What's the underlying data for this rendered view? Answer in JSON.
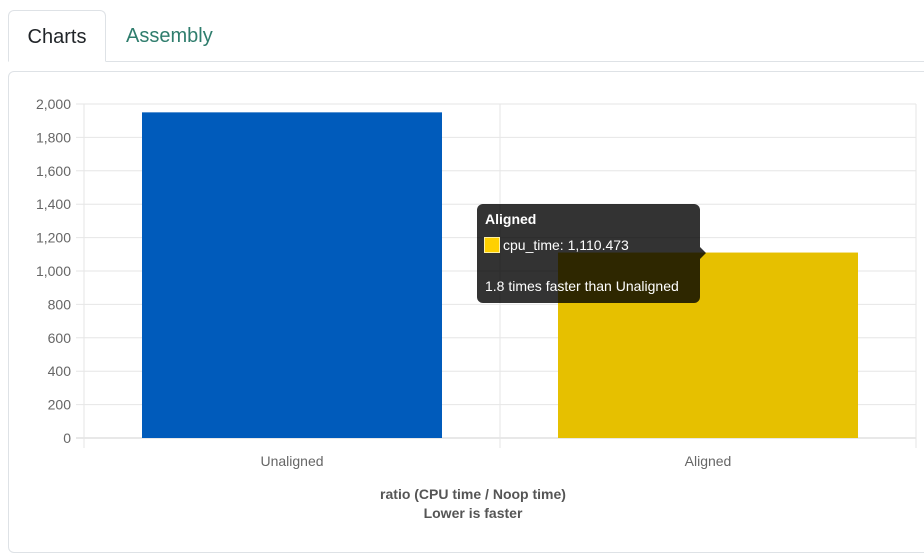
{
  "tabs": [
    {
      "label": "Charts",
      "active": true
    },
    {
      "label": "Assembly",
      "active": false
    }
  ],
  "chart_data": {
    "type": "bar",
    "categories": [
      "Unaligned",
      "Aligned"
    ],
    "series": [
      {
        "name": "cpu_time",
        "values": [
          1950,
          1110.473
        ]
      }
    ],
    "colors": [
      "#005bbb",
      "#e6c000"
    ],
    "ylim": [
      0,
      2000
    ],
    "yticks": [
      0,
      200,
      400,
      600,
      800,
      1000,
      1200,
      1400,
      1600,
      1800,
      2000
    ],
    "ytick_labels": [
      "0",
      "200",
      "400",
      "600",
      "800",
      "1,000",
      "1,200",
      "1,400",
      "1,600",
      "1,800",
      "2,000"
    ],
    "xlabel": [
      "ratio (CPU time / Noop time)",
      "Lower is faster"
    ],
    "grid": true,
    "tooltip": {
      "title": "Aligned",
      "row": "cpu_time: 1,110.473",
      "footer": "1.8 times faster than Unaligned",
      "swatch_color": "#ffd000"
    }
  }
}
